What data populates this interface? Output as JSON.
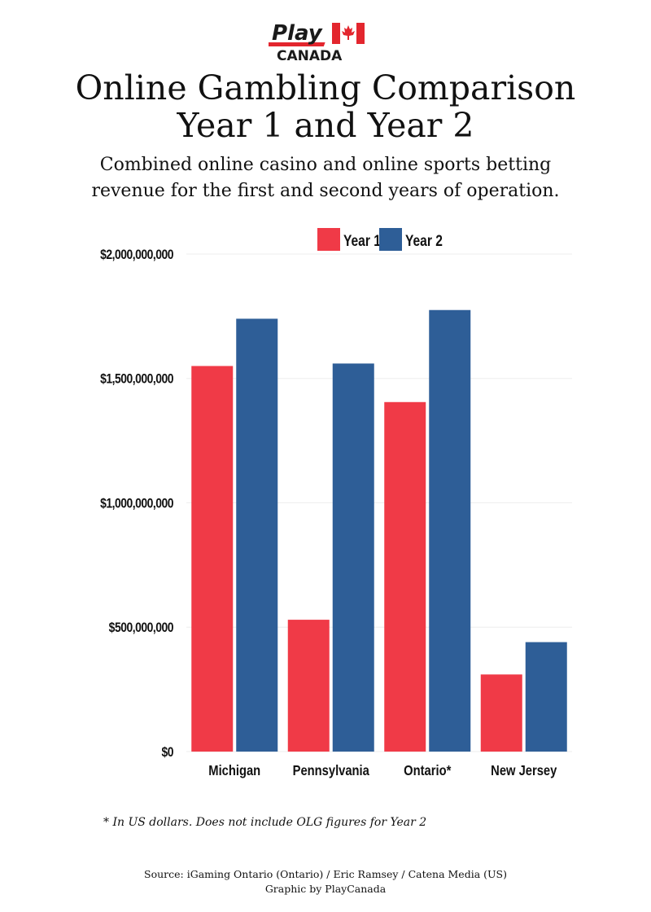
{
  "logo": {
    "top_text": "Play",
    "bottom_text": "CANADA"
  },
  "title_lines": [
    "Online Gambling Comparison",
    "Year 1 and Year 2"
  ],
  "subtitle_lines": [
    "Combined online casino and online sports betting",
    "revenue for the first and second years of operation."
  ],
  "footnote": "* In US dollars. Does not include OLG figures for Year 2",
  "source_lines": [
    "Source: iGaming Ontario (Ontario) / Eric Ramsey / Catena Media (US)",
    "Graphic by PlayCanada"
  ],
  "colors": {
    "year1": "#f03a47",
    "year2": "#2e5e97",
    "logo_red": "#e3262e",
    "grid": "#eeeeee"
  },
  "chart_data": {
    "type": "bar",
    "categories": [
      "Michigan",
      "Pennsylvania",
      "Ontario*",
      "New Jersey"
    ],
    "series": [
      {
        "name": "Year 1",
        "values": [
          1550000000,
          530000000,
          1405000000,
          310000000
        ]
      },
      {
        "name": "Year 2",
        "values": [
          1740000000,
          1560000000,
          1775000000,
          440000000
        ]
      }
    ],
    "ylim": [
      0,
      2000000000
    ],
    "y_ticks": [
      0,
      500000000,
      1000000000,
      1500000000,
      2000000000
    ],
    "y_tick_labels": [
      "$0",
      "$500,000,000",
      "$1,000,000,000",
      "$1,500,000,000",
      "$2,000,000,000"
    ],
    "grid": true,
    "legend_position": "top"
  }
}
